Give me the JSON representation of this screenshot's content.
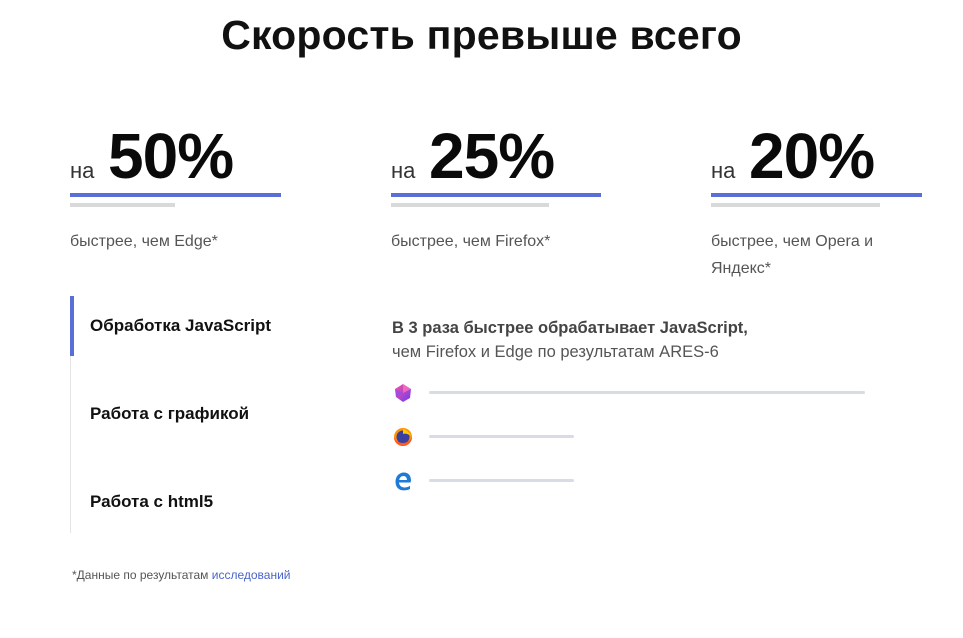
{
  "header": {
    "title": "Скорость превыше всего"
  },
  "stats": [
    {
      "prefix": "на",
      "value": "50%",
      "description": "быстрее, чем Edge*"
    },
    {
      "prefix": "на",
      "value": "25%",
      "description": "быстрее, чем Firefox*"
    },
    {
      "prefix": "на",
      "value": "20%",
      "description": "быстрее, чем Opera и Яндекс*"
    }
  ],
  "tabs": [
    {
      "label": "Обработка JavaScript",
      "active": true
    },
    {
      "label": "Работа с графикой",
      "active": false
    },
    {
      "label": "Работа с html5",
      "active": false
    }
  ],
  "detail": {
    "heading": "В 3 раза быстрее обрабатывает JavaScript,",
    "subheading": "чем Firefox и Edge по результатам ARES-6",
    "browsers": [
      {
        "icon": "opera-neon-icon",
        "relative_score": 1.0
      },
      {
        "icon": "firefox-icon",
        "relative_score": 0.333
      },
      {
        "icon": "edge-icon",
        "relative_score": 0.333
      }
    ]
  },
  "footnote": {
    "text": "*Данные по результатам ",
    "link_text": "исследований"
  },
  "colors": {
    "accent": "#5a6fd6",
    "bar_gray": "#d9d9d9",
    "link": "#4a64c9"
  }
}
